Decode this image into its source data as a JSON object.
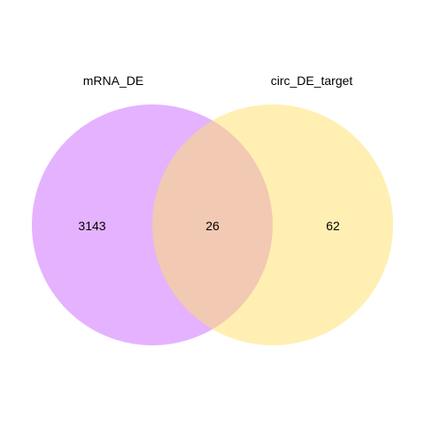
{
  "venn": {
    "sets": [
      {
        "label": "mRNA_DE",
        "color": "#CC66FF"
      },
      {
        "label": "circ_DE_target",
        "color": "#FFE066"
      }
    ],
    "counts": {
      "a_only": "3143",
      "intersection": "26",
      "b_only": "62"
    },
    "opacity": 0.5
  }
}
